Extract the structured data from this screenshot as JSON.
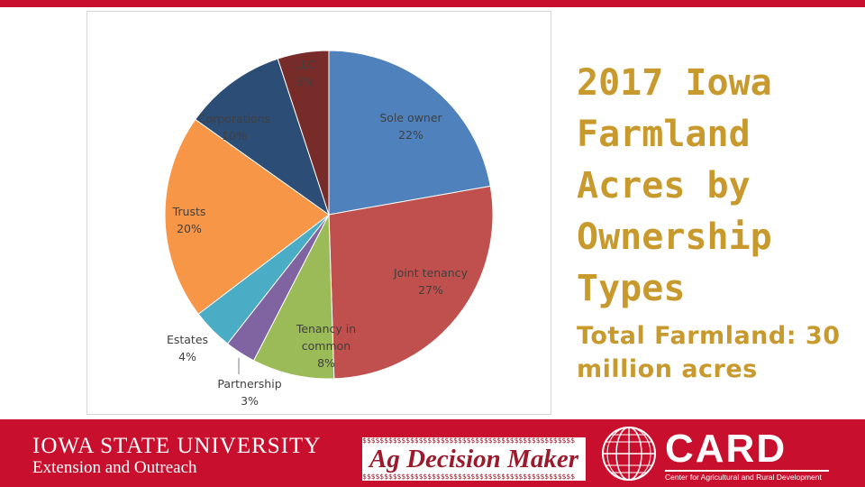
{
  "chart_data": {
    "type": "pie",
    "slices": [
      {
        "label": "Sole owner",
        "value": 22,
        "pct_label": "22%",
        "color": "#4f81bd"
      },
      {
        "label": "Joint tenancy",
        "value": 27,
        "pct_label": "27%",
        "color": "#c0504d"
      },
      {
        "label": "Tenancy in common",
        "value": 8,
        "pct_label": "8%",
        "color": "#9bbb59"
      },
      {
        "label": "Partnership",
        "value": 3,
        "pct_label": "3%",
        "color": "#8064a2"
      },
      {
        "label": "Estates",
        "value": 4,
        "pct_label": "4%",
        "color": "#4bacc6"
      },
      {
        "label": "Trusts",
        "value": 20,
        "pct_label": "20%",
        "color": "#f79646"
      },
      {
        "label": "Corporations",
        "value": 10,
        "pct_label": "10%",
        "color": "#2c4d75"
      },
      {
        "label": "LLC",
        "value": 5,
        "pct_label": "5%",
        "color": "#772c2a"
      }
    ],
    "start_angle": "12 o'clock",
    "direction": "clockwise",
    "legend": "none",
    "title": ""
  },
  "slide": {
    "title": "2017 Iowa Farmland Acres by Ownership Types",
    "total": "Total Farmland: 30 million acres"
  },
  "footer": {
    "isu_line1": "IOWA STATE UNIVERSITY",
    "isu_line2": "Extension and Outreach",
    "adm_name": "Ag Decision Maker",
    "adm_pattern": "$$$$$$$$$$$$$$$$$$$$$$$$$$$$$$$$$$$$$$$$$$$$$$$$$",
    "card_name": "CARD",
    "card_sub": "Center for Agricultural and Rural Development"
  },
  "colors": {
    "brand_red": "#c8102e",
    "title_gold": "#c89a2e",
    "label_dark": "#404040"
  }
}
